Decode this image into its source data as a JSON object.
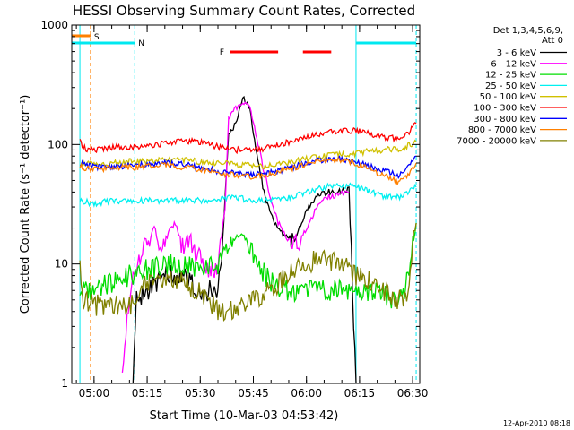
{
  "chart_data": {
    "type": "line",
    "title": "HESSI Observing Summary Count Rates, Corrected",
    "xlabel": "Start Time (10-Mar-03 04:53:42)",
    "ylabel": "Corrected Count Rate (s⁻¹ detector⁻¹)",
    "xlim": [
      "04:53:42",
      "06:32:00"
    ],
    "ylim": [
      1,
      1000
    ],
    "yscale": "log",
    "x_ticks": [
      "05:00",
      "05:15",
      "05:30",
      "05:45",
      "06:00",
      "06:15",
      "06:30"
    ],
    "y_ticks": [
      "1",
      "10",
      "100",
      "1000"
    ],
    "legend_title": [
      "Det 1,3,4,5,6,9,",
      "Att 0"
    ],
    "legend_position": "right",
    "footer": "12-Apr-2010 08:18",
    "flags": {
      "S": {
        "label": "S",
        "color": "#ff8000",
        "x_start": "04:53:42",
        "x_end": "04:59:00"
      },
      "N": {
        "label": "N",
        "color": "#00e8f0",
        "segments": [
          [
            "04:53:42",
            "05:11:30"
          ],
          [
            "06:14:00",
            "06:31:00"
          ]
        ]
      },
      "F": {
        "label": "F",
        "color": "#ff0000",
        "segments": [
          [
            "05:38:30",
            "05:52:00"
          ],
          [
            "05:59:00",
            "06:07:00"
          ]
        ]
      }
    },
    "vertical_lines": [
      {
        "x": "04:56:00",
        "color": "#00e8f0",
        "style": "solid"
      },
      {
        "x": "04:59:00",
        "color": "#ff8000",
        "style": "dashed"
      },
      {
        "x": "05:11:30",
        "color": "#00e8f0",
        "style": "dashed"
      },
      {
        "x": "06:14:00",
        "color": "#00e8f0",
        "style": "solid"
      },
      {
        "x": "06:31:00",
        "color": "#00e8f0",
        "style": "dashed"
      }
    ],
    "series": [
      {
        "name": "3 - 6 keV",
        "color": "#000000",
        "points": [
          [
            "05:11",
            1
          ],
          [
            "05:12",
            5
          ],
          [
            "05:15",
            6
          ],
          [
            "05:20",
            8
          ],
          [
            "05:25",
            8
          ],
          [
            "05:30",
            6
          ],
          [
            "05:35",
            6
          ],
          [
            "05:36",
            10
          ],
          [
            "05:38",
            120
          ],
          [
            "05:40",
            150
          ],
          [
            "05:42",
            250
          ],
          [
            "05:44",
            200
          ],
          [
            "05:46",
            80
          ],
          [
            "05:48",
            40
          ],
          [
            "05:50",
            25
          ],
          [
            "05:53",
            18
          ],
          [
            "05:56",
            15
          ],
          [
            "05:58",
            20
          ],
          [
            "06:00",
            28
          ],
          [
            "06:03",
            38
          ],
          [
            "06:06",
            40
          ],
          [
            "06:09",
            40
          ],
          [
            "06:12",
            42
          ],
          [
            "06:14",
            1
          ]
        ]
      },
      {
        "name": "6 - 12 keV",
        "color": "#ff00ff",
        "points": [
          [
            "05:08",
            1.5
          ],
          [
            "05:11",
            8
          ],
          [
            "05:13",
            12
          ],
          [
            "05:15",
            14
          ],
          [
            "05:17",
            20
          ],
          [
            "05:19",
            13
          ],
          [
            "05:21",
            18
          ],
          [
            "05:23",
            22
          ],
          [
            "05:25",
            14
          ],
          [
            "05:27",
            16
          ],
          [
            "05:29",
            12
          ],
          [
            "05:31",
            10
          ],
          [
            "05:33",
            9
          ],
          [
            "05:35",
            9
          ],
          [
            "05:37",
            30
          ],
          [
            "05:38",
            160
          ],
          [
            "05:40",
            200
          ],
          [
            "05:42",
            230
          ],
          [
            "05:44",
            200
          ],
          [
            "05:46",
            110
          ],
          [
            "05:48",
            60
          ],
          [
            "05:50",
            35
          ],
          [
            "05:52",
            22
          ],
          [
            "05:55",
            16
          ],
          [
            "05:58",
            15
          ],
          [
            "06:00",
            20
          ],
          [
            "06:03",
            30
          ],
          [
            "06:06",
            36
          ],
          [
            "06:09",
            38
          ],
          [
            "06:12",
            40
          ]
        ]
      },
      {
        "name": "12 - 25 keV",
        "color": "#00dd00",
        "points": [
          [
            "04:56",
            6
          ],
          [
            "05:00",
            6
          ],
          [
            "05:05",
            7
          ],
          [
            "05:10",
            8
          ],
          [
            "05:15",
            9
          ],
          [
            "05:20",
            10
          ],
          [
            "05:25",
            10
          ],
          [
            "05:30",
            9
          ],
          [
            "05:35",
            10
          ],
          [
            "05:38",
            14
          ],
          [
            "05:40",
            17
          ],
          [
            "05:42",
            17
          ],
          [
            "05:44",
            15
          ],
          [
            "05:46",
            10
          ],
          [
            "05:50",
            7
          ],
          [
            "05:55",
            6
          ],
          [
            "06:00",
            6
          ],
          [
            "06:05",
            6
          ],
          [
            "06:10",
            6
          ],
          [
            "06:14",
            6
          ],
          [
            "06:20",
            6
          ],
          [
            "06:25",
            5
          ],
          [
            "06:28",
            6
          ],
          [
            "06:31",
            22
          ]
        ]
      },
      {
        "name": "25 - 50 keV",
        "color": "#00f0f0",
        "points": [
          [
            "04:56",
            34
          ],
          [
            "05:00",
            32
          ],
          [
            "05:05",
            34
          ],
          [
            "05:10",
            33
          ],
          [
            "05:15",
            34
          ],
          [
            "05:20",
            34
          ],
          [
            "05:25",
            34
          ],
          [
            "05:30",
            34
          ],
          [
            "05:35",
            35
          ],
          [
            "05:40",
            36
          ],
          [
            "05:45",
            34
          ],
          [
            "05:50",
            34
          ],
          [
            "05:55",
            36
          ],
          [
            "06:00",
            40
          ],
          [
            "06:05",
            44
          ],
          [
            "06:10",
            46
          ],
          [
            "06:14",
            44
          ],
          [
            "06:18",
            40
          ],
          [
            "06:22",
            37
          ],
          [
            "06:26",
            36
          ],
          [
            "06:28",
            38
          ],
          [
            "06:31",
            44
          ]
        ]
      },
      {
        "name": "50 - 100 keV",
        "color": "#d0c000",
        "points": [
          [
            "04:56",
            70
          ],
          [
            "05:00",
            68
          ],
          [
            "05:05",
            70
          ],
          [
            "05:10",
            72
          ],
          [
            "05:15",
            72
          ],
          [
            "05:20",
            74
          ],
          [
            "05:25",
            74
          ],
          [
            "05:30",
            72
          ],
          [
            "05:35",
            70
          ],
          [
            "05:40",
            68
          ],
          [
            "05:45",
            66
          ],
          [
            "05:50",
            66
          ],
          [
            "05:55",
            70
          ],
          [
            "06:00",
            76
          ],
          [
            "06:05",
            80
          ],
          [
            "06:10",
            82
          ],
          [
            "06:14",
            84
          ],
          [
            "06:18",
            88
          ],
          [
            "06:22",
            90
          ],
          [
            "06:26",
            92
          ],
          [
            "06:28",
            95
          ],
          [
            "06:31",
            105
          ]
        ]
      },
      {
        "name": "100 - 300 keV",
        "color": "#ff0000",
        "points": [
          [
            "04:56",
            105
          ],
          [
            "04:58",
            90
          ],
          [
            "05:00",
            90
          ],
          [
            "05:05",
            95
          ],
          [
            "05:10",
            95
          ],
          [
            "05:15",
            98
          ],
          [
            "05:20",
            102
          ],
          [
            "05:25",
            108
          ],
          [
            "05:30",
            104
          ],
          [
            "05:35",
            96
          ],
          [
            "05:40",
            90
          ],
          [
            "05:45",
            90
          ],
          [
            "05:50",
            95
          ],
          [
            "05:55",
            105
          ],
          [
            "06:00",
            115
          ],
          [
            "06:05",
            125
          ],
          [
            "06:10",
            130
          ],
          [
            "06:14",
            130
          ],
          [
            "06:18",
            122
          ],
          [
            "06:22",
            115
          ],
          [
            "06:26",
            112
          ],
          [
            "06:28",
            118
          ],
          [
            "06:31",
            150
          ]
        ]
      },
      {
        "name": "300 - 800 keV",
        "color": "#0000ff",
        "points": [
          [
            "04:56",
            70
          ],
          [
            "05:00",
            65
          ],
          [
            "05:05",
            66
          ],
          [
            "05:10",
            66
          ],
          [
            "05:15",
            68
          ],
          [
            "05:20",
            70
          ],
          [
            "05:25",
            68
          ],
          [
            "05:30",
            64
          ],
          [
            "05:35",
            60
          ],
          [
            "05:40",
            57
          ],
          [
            "05:45",
            56
          ],
          [
            "05:50",
            58
          ],
          [
            "05:55",
            63
          ],
          [
            "06:00",
            70
          ],
          [
            "06:05",
            75
          ],
          [
            "06:10",
            76
          ],
          [
            "06:14",
            72
          ],
          [
            "06:18",
            65
          ],
          [
            "06:22",
            60
          ],
          [
            "06:26",
            55
          ],
          [
            "06:28",
            60
          ],
          [
            "06:31",
            80
          ]
        ]
      },
      {
        "name": "800 - 7000 keV",
        "color": "#ff8000",
        "points": [
          [
            "04:56",
            65
          ],
          [
            "05:00",
            62
          ],
          [
            "05:05",
            64
          ],
          [
            "05:10",
            64
          ],
          [
            "05:15",
            66
          ],
          [
            "05:20",
            67
          ],
          [
            "05:25",
            65
          ],
          [
            "05:30",
            62
          ],
          [
            "05:35",
            58
          ],
          [
            "05:40",
            55
          ],
          [
            "05:45",
            54
          ],
          [
            "05:50",
            56
          ],
          [
            "05:55",
            62
          ],
          [
            "06:00",
            68
          ],
          [
            "06:05",
            73
          ],
          [
            "06:10",
            74
          ],
          [
            "06:14",
            70
          ],
          [
            "06:18",
            62
          ],
          [
            "06:22",
            55
          ],
          [
            "06:26",
            48
          ],
          [
            "06:28",
            52
          ],
          [
            "06:31",
            70
          ]
        ]
      },
      {
        "name": "7000 - 20000 keV",
        "color": "#808000",
        "points": [
          [
            "04:56",
            9
          ],
          [
            "04:57",
            5
          ],
          [
            "05:00",
            4.5
          ],
          [
            "05:05",
            4.5
          ],
          [
            "05:10",
            4.5
          ],
          [
            "05:12",
            5
          ],
          [
            "05:15",
            7
          ],
          [
            "05:20",
            7
          ],
          [
            "05:25",
            7
          ],
          [
            "05:30",
            6
          ],
          [
            "05:35",
            4
          ],
          [
            "05:40",
            4
          ],
          [
            "05:45",
            5
          ],
          [
            "05:50",
            6
          ],
          [
            "05:55",
            8
          ],
          [
            "06:00",
            10
          ],
          [
            "06:03",
            11
          ],
          [
            "06:06",
            11
          ],
          [
            "06:10",
            10
          ],
          [
            "06:14",
            8
          ],
          [
            "06:18",
            7
          ],
          [
            "06:22",
            6
          ],
          [
            "06:26",
            5
          ],
          [
            "06:28",
            5
          ],
          [
            "06:31",
            22
          ]
        ]
      }
    ]
  }
}
